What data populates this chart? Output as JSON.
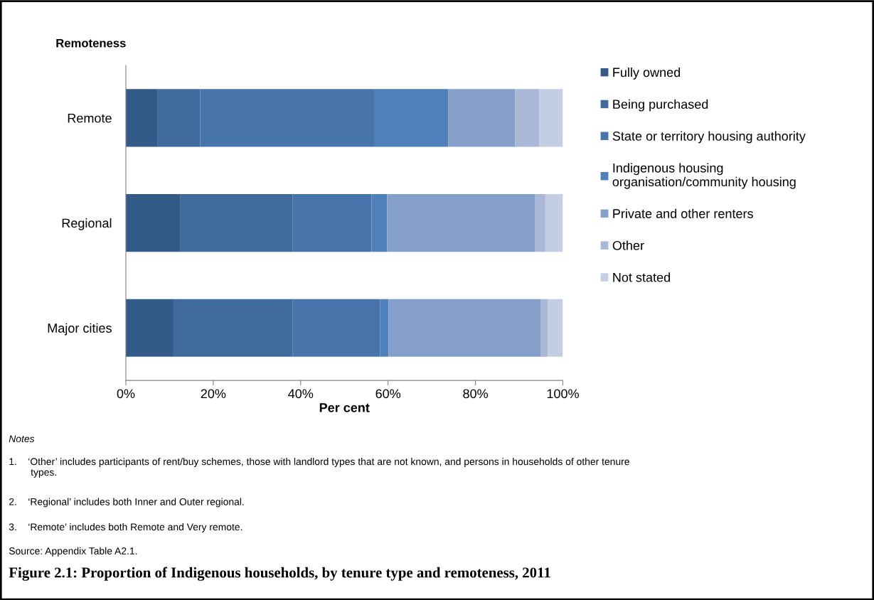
{
  "chart_data": {
    "type": "bar",
    "orientation": "horizontal",
    "stacked": true,
    "title": "Figure 2.1: Proportion of Indigenous households, by tenure type and remoteness, 2011",
    "ylabel": "Remoteness",
    "xlabel": "Per cent",
    "categories": [
      "Remote",
      "Regional",
      "Major cities"
    ],
    "series": [
      {
        "name": "Fully owned",
        "color": "#345b88",
        "values": [
          7.3,
          12.5,
          10.9
        ]
      },
      {
        "name": "Being purchased",
        "color": "#3f6a9b",
        "values": [
          9.7,
          25.7,
          27.3
        ]
      },
      {
        "name": "State or territory housing authority",
        "color": "#4874ac",
        "values": [
          39.8,
          18.0,
          20.0
        ]
      },
      {
        "name": "Indigenous housing\norganisation/community housing",
        "color": "#4e80bb",
        "values": [
          17.0,
          3.6,
          1.9
        ]
      },
      {
        "name": "Private and other renters",
        "color": "#84a0ca",
        "values": [
          15.3,
          33.9,
          34.9
        ]
      },
      {
        "name": "Other",
        "color": "#aab8d7",
        "values": [
          5.5,
          2.3,
          1.6
        ]
      },
      {
        "name": "Not stated",
        "color": "#c4cee2",
        "values": [
          5.4,
          4.0,
          3.4
        ]
      }
    ],
    "xlim": [
      0,
      100
    ],
    "xticks": [
      {
        "value": 0,
        "label": "0%"
      },
      {
        "value": 20,
        "label": "20%"
      },
      {
        "value": 40,
        "label": "40%"
      },
      {
        "value": 60,
        "label": "60%"
      },
      {
        "value": 80,
        "label": "80%"
      },
      {
        "value": 100,
        "label": "100%"
      }
    ],
    "grid": false,
    "legend": "right",
    "annotations": [
      "Notes",
      "1.    ‘Other’ includes participants of rent/buy schemes, those with landlord types that are not known, and persons in households of other tenure\n        types.",
      "2.    ‘Regional’ includes both Inner and Outer regional.",
      "3.    ‘Remote’ includes both Remote and Very remote.",
      "Source: Appendix Table A2.1."
    ]
  }
}
